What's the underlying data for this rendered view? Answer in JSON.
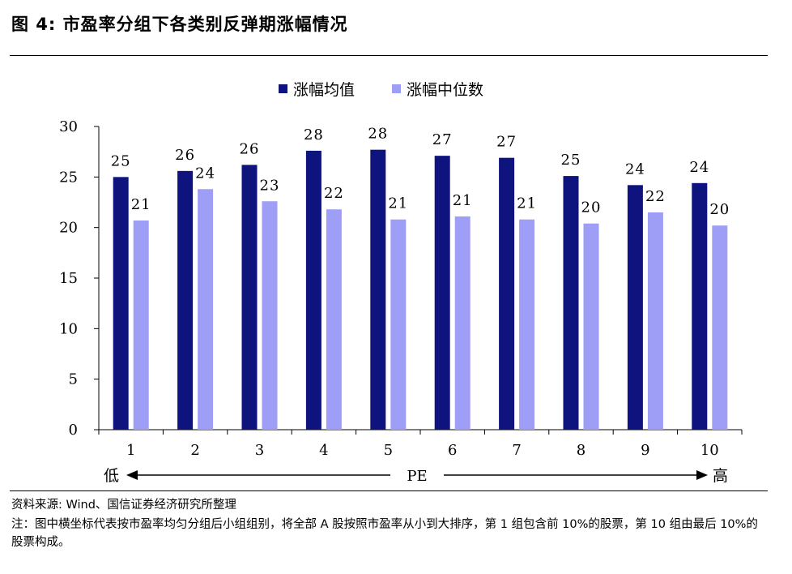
{
  "figure": {
    "title": "图 4:  市盈率分组下各类别反弹期涨幅情况"
  },
  "chart_data": {
    "type": "bar",
    "categories": [
      "1",
      "2",
      "3",
      "4",
      "5",
      "6",
      "7",
      "8",
      "9",
      "10"
    ],
    "series": [
      {
        "name": "涨幅均值",
        "values": [
          25,
          25.6,
          26.2,
          27.6,
          27.7,
          27.1,
          26.9,
          25.1,
          24.2,
          24.4
        ],
        "labels": [
          "25",
          "26",
          "26",
          "28",
          "28",
          "27",
          "27",
          "25",
          "24",
          "24"
        ],
        "color": "#0f137d"
      },
      {
        "name": "涨幅中位数",
        "values": [
          20.7,
          23.8,
          22.6,
          21.8,
          20.8,
          21.1,
          20.8,
          20.4,
          21.5,
          20.2
        ],
        "labels": [
          "21",
          "24",
          "23",
          "22",
          "21",
          "21",
          "21",
          "20",
          "22",
          "20"
        ],
        "color": "#9e9ef6"
      }
    ],
    "ylim": [
      0,
      30
    ],
    "yticks": [
      "0",
      "5",
      "10",
      "15",
      "20",
      "25",
      "30"
    ],
    "legend_position": "top-center",
    "x_annotation": {
      "low": "低",
      "label": "PE",
      "high": "高"
    }
  },
  "footer": {
    "source": "资料来源: Wind、国信证券经济研究所整理",
    "note": "注：图中横坐标代表按市盈率均匀分组后小组组别，将全部 A 股按照市盈率从小到大排序，第 1 组包含前 10%的股票，第 10 组由最后 10%的股票构成。"
  }
}
